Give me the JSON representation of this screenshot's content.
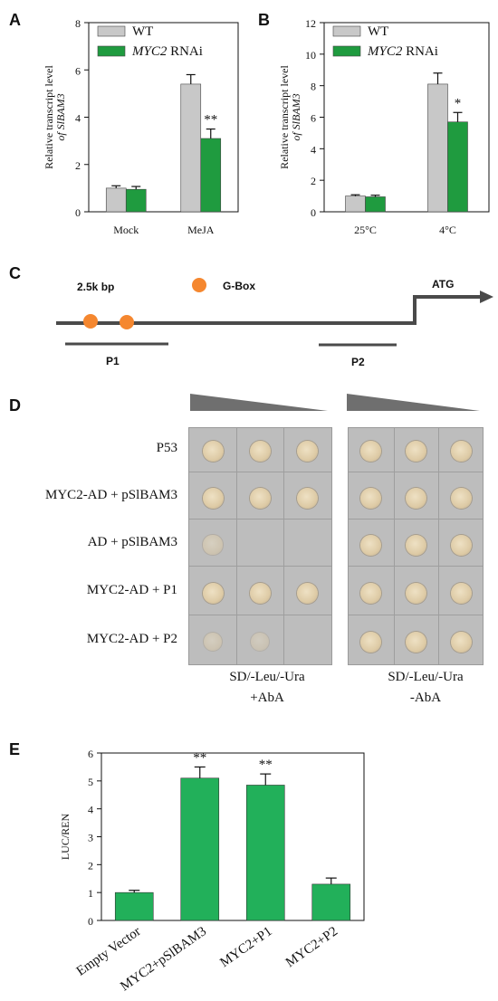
{
  "colors": {
    "wt": "#c8c8c8",
    "rnai": "#1f9b3f",
    "luc": "#22b05a",
    "gbox": "#f5872f",
    "line": "#4a4a4a"
  },
  "panels": {
    "a": "A",
    "b": "B",
    "c": "C",
    "d": "D",
    "e": "E"
  },
  "chart_data": [
    {
      "id": "A",
      "type": "bar",
      "categories": [
        "Mock",
        "MeJA"
      ],
      "series": [
        {
          "name": "WT",
          "values": [
            1.0,
            5.4
          ],
          "errors": [
            0.1,
            0.4
          ]
        },
        {
          "name": "MYC2 RNAi",
          "values": [
            0.95,
            3.1
          ],
          "errors": [
            0.12,
            0.4
          ]
        }
      ],
      "legend": [
        "WT",
        "MYC2",
        "RNAi"
      ],
      "ylabel_line1": "Relative transcript level",
      "ylabel_line2": "of SlBAM3",
      "ylim": [
        0,
        8
      ],
      "yticks": [
        "0",
        "2",
        "4",
        "6",
        "8"
      ],
      "annotations": [
        {
          "category": 1,
          "series": 1,
          "text": "**"
        }
      ],
      "legend_position": "top-left"
    },
    {
      "id": "B",
      "type": "bar",
      "categories": [
        "25°C",
        "4°C"
      ],
      "series": [
        {
          "name": "WT",
          "values": [
            1.0,
            8.1
          ],
          "errors": [
            0.08,
            0.7
          ]
        },
        {
          "name": "MYC2 RNAi",
          "values": [
            0.95,
            5.7
          ],
          "errors": [
            0.1,
            0.6
          ]
        }
      ],
      "legend": [
        "WT",
        "MYC2",
        "RNAi"
      ],
      "ylabel_line1": "Relative transcript level",
      "ylabel_line2": "of SlBAM3",
      "ylim": [
        0,
        12
      ],
      "yticks": [
        "0",
        "2",
        "4",
        "6",
        "8",
        "10",
        "12"
      ],
      "annotations": [
        {
          "category": 1,
          "series": 1,
          "text": "*"
        }
      ],
      "legend_position": "top-left"
    },
    {
      "id": "E",
      "type": "bar",
      "categories": [
        "Empty Vector",
        "MYC2+pSlBAM3",
        "MYC2+P1",
        "MYC2+P2"
      ],
      "series": [
        {
          "values": [
            1.0,
            5.1,
            4.85,
            1.3
          ],
          "errors": [
            0.08,
            0.4,
            0.4,
            0.22
          ]
        }
      ],
      "ylabel": "LUC/REN",
      "ylim": [
        0,
        6
      ],
      "yticks": [
        "0",
        "1",
        "2",
        "3",
        "4",
        "5",
        "6"
      ],
      "annotations": [
        {
          "category": 1,
          "text": "**"
        },
        {
          "category": 2,
          "text": "**"
        }
      ]
    }
  ],
  "diagram": {
    "length": "2.5k bp",
    "gbox": "G-Box",
    "start": "ATG",
    "probe1": "P1",
    "probe2": "P2"
  },
  "yeast": {
    "rows": [
      "P53",
      "MYC2-AD + pSlBAM3",
      "AD + pSlBAM3",
      "MYC2-AD + P1",
      "MYC2-AD + P2"
    ],
    "growth_left": [
      [
        1,
        1,
        1
      ],
      [
        1,
        1,
        1
      ],
      [
        0.35,
        0,
        0
      ],
      [
        1,
        1,
        1
      ],
      [
        0.3,
        0.2,
        0
      ]
    ],
    "growth_right": [
      [
        1,
        1,
        1
      ],
      [
        1,
        1,
        1
      ],
      [
        1,
        1,
        1
      ],
      [
        1,
        1,
        1
      ],
      [
        1,
        1,
        1
      ]
    ],
    "left_label_1": "SD/-Leu/-Ura",
    "left_label_2": "+AbA",
    "right_label_1": "SD/-Leu/-Ura",
    "right_label_2": "-AbA"
  }
}
